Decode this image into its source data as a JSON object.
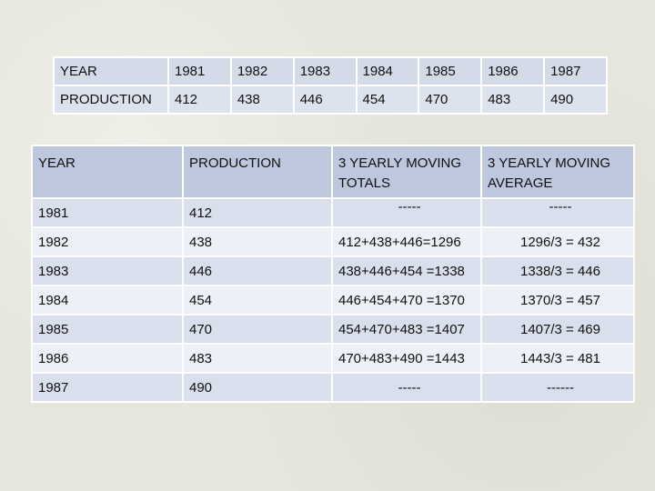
{
  "top_table": {
    "row_label_year": "YEAR",
    "row_label_production": "PRODUCTION",
    "years": [
      "1981",
      "1982",
      "1983",
      "1984",
      "1985",
      "1986",
      "1987"
    ],
    "production": [
      "412",
      "438",
      "446",
      "454",
      "470",
      "483",
      "490"
    ]
  },
  "main_table": {
    "headers": {
      "year": "YEAR",
      "production": "PRODUCTION",
      "moving_totals": "3 YEARLY MOVING TOTALS",
      "moving_average": "3 YEARLY MOVING AVERAGE"
    },
    "header_dashes": {
      "totals": "-----",
      "average": "-----"
    },
    "rows": [
      {
        "year": "1981",
        "production": "412",
        "total": "",
        "average": ""
      },
      {
        "year": "1982",
        "production": "438",
        "total": "412+438+446=1296",
        "average": "1296/3 = 432"
      },
      {
        "year": "1983",
        "production": "446",
        "total": "438+446+454 =1338",
        "average": "1338/3 = 446"
      },
      {
        "year": "1984",
        "production": "454",
        "total": "446+454+470 =1370",
        "average": "1370/3 = 457"
      },
      {
        "year": "1985",
        "production": "470",
        "total": "454+470+483 =1407",
        "average": "1407/3 = 469"
      },
      {
        "year": "1986",
        "production": "483",
        "total": "470+483+490 =1443",
        "average": "1443/3 = 481"
      },
      {
        "year": "1987",
        "production": "490",
        "total": "-----",
        "average": "------"
      }
    ]
  }
}
